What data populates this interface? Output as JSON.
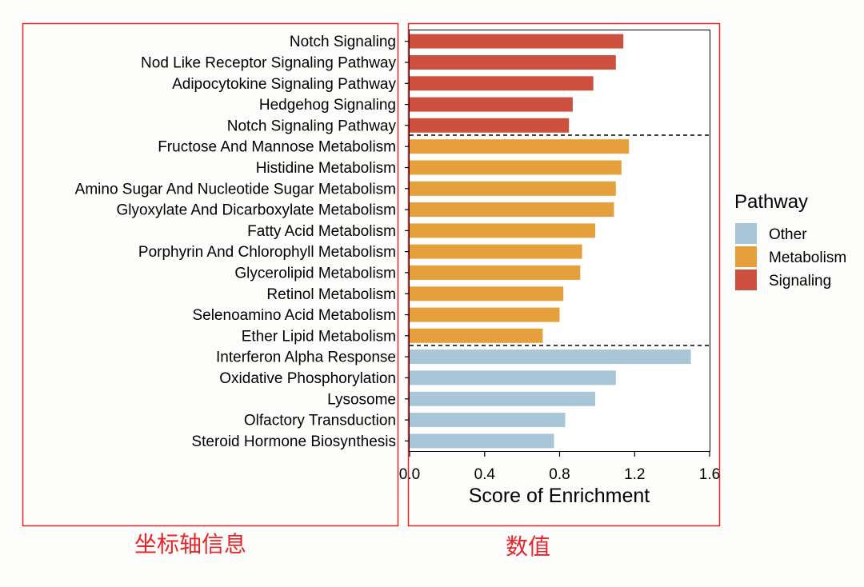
{
  "chart_data": {
    "type": "bar",
    "orientation": "horizontal",
    "categories": [
      "Notch Signaling",
      "Nod Like Receptor Signaling Pathway",
      "Adipocytokine Signaling Pathway",
      "Hedgehog Signaling",
      "Notch Signaling Pathway",
      "Fructose And Mannose Metabolism",
      "Histidine Metabolism",
      "Amino Sugar And Nucleotide Sugar Metabolism",
      "Glyoxylate And Dicarboxylate Metabolism",
      "Fatty Acid Metabolism",
      "Porphyrin And Chlorophyll Metabolism",
      "Glycerolipid Metabolism",
      "Retinol Metabolism",
      "Selenoamino Acid Metabolism",
      "Ether Lipid Metabolism",
      "Interferon Alpha Response",
      "Oxidative Phosphorylation",
      "Lysosome",
      "Olfactory Transduction",
      "Steroid Hormone Biosynthesis"
    ],
    "values": [
      1.14,
      1.1,
      0.98,
      0.87,
      0.85,
      1.17,
      1.13,
      1.1,
      1.09,
      0.99,
      0.92,
      0.91,
      0.82,
      0.8,
      0.71,
      1.5,
      1.1,
      0.99,
      0.83,
      0.77
    ],
    "groups": [
      "Signaling",
      "Signaling",
      "Signaling",
      "Signaling",
      "Signaling",
      "Metabolism",
      "Metabolism",
      "Metabolism",
      "Metabolism",
      "Metabolism",
      "Metabolism",
      "Metabolism",
      "Metabolism",
      "Metabolism",
      "Metabolism",
      "Other",
      "Other",
      "Other",
      "Other",
      "Other"
    ],
    "xlabel": "Score of Enrichment",
    "xlim": [
      0,
      1.6
    ],
    "xticks": [
      0,
      0.4,
      0.8,
      1.2,
      1.6
    ],
    "xtick_labels": [
      "0.0",
      "0.4",
      "0.8",
      "1.2",
      "1.6"
    ],
    "legend": {
      "title": "Pathway",
      "position": "right",
      "entries": [
        {
          "name": "Other",
          "color": "#a9c6d8"
        },
        {
          "name": "Metabolism",
          "color": "#e5a03c"
        },
        {
          "name": "Signaling",
          "color": "#cd4f3d"
        }
      ]
    },
    "group_separators": "dashed lines between groups",
    "grid": false
  },
  "annotations": {
    "axis_info": "坐标轴信息",
    "values": "数值"
  },
  "colors": {
    "annotation_red": "#e8232a",
    "signaling": "#cd4f3d",
    "metabolism": "#e5a03c",
    "other": "#a9c6d8"
  }
}
